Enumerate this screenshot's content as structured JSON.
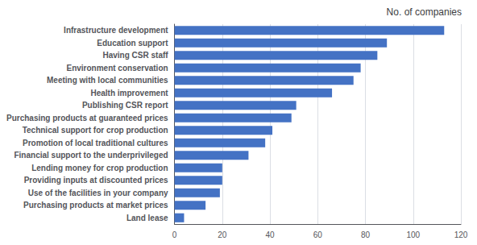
{
  "chart_data": {
    "type": "bar",
    "orientation": "horizontal",
    "title": "No. of companies",
    "categories": [
      "Land lease",
      "Purchasing products at market prices",
      "Use of the facilities in your company",
      "Providing inputs at discounted prices",
      "Lending money for crop production",
      "Financial support to the underprivileged",
      "Promotion of local traditional cultures",
      "Technical support for crop production",
      "Purchasing products at guaranteed prices",
      "Publishing CSR report",
      "Health improvement",
      "Meeting with local communities",
      "Environment conservation",
      "Having CSR staff",
      "Education support",
      "Infrastructure development"
    ],
    "values": [
      4,
      13,
      19,
      20,
      20,
      31,
      38,
      41,
      49,
      51,
      66,
      75,
      78,
      85,
      89,
      113
    ],
    "color": "#4472C4",
    "xlim": [
      0,
      120
    ],
    "xticks": [
      0,
      20,
      40,
      60,
      80,
      100,
      120
    ],
    "grid": true
  }
}
